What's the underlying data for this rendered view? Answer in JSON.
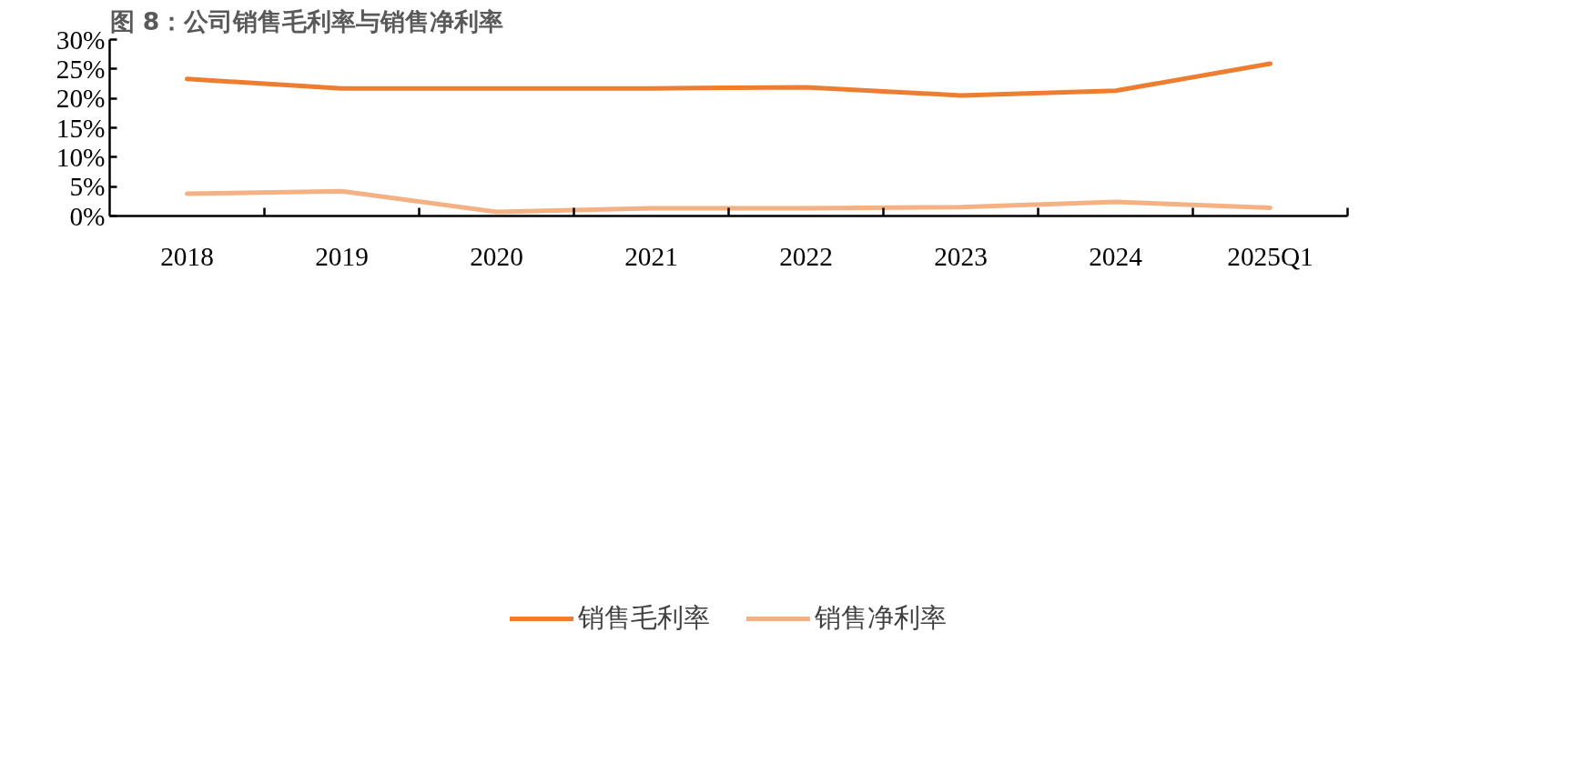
{
  "chart_data": {
    "type": "line",
    "title": "图 8：公司销售毛利率与销售净利率",
    "categories": [
      "2018",
      "2019",
      "2020",
      "2021",
      "2022",
      "2023",
      "2024",
      "2025Q1"
    ],
    "series": [
      {
        "name": "销售毛利率",
        "color": "#ed7d31",
        "values": [
          23.3,
          21.7,
          21.7,
          21.7,
          21.9,
          20.5,
          21.3,
          25.9
        ]
      },
      {
        "name": "销售净利率",
        "color": "#f4b183",
        "values": [
          3.8,
          4.2,
          0.7,
          1.3,
          1.3,
          1.5,
          2.4,
          1.4
        ]
      }
    ],
    "ylim": [
      0,
      30
    ],
    "yticks": [
      {
        "value": 0,
        "label": "0%"
      },
      {
        "value": 5,
        "label": "5%"
      },
      {
        "value": 10,
        "label": "10%"
      },
      {
        "value": 15,
        "label": "15%"
      },
      {
        "value": 20,
        "label": "20%"
      },
      {
        "value": 25,
        "label": "25%"
      },
      {
        "value": 30,
        "label": "30%"
      }
    ],
    "grid": false,
    "legend": "bottom",
    "marker": "none",
    "line_style": "solid"
  }
}
